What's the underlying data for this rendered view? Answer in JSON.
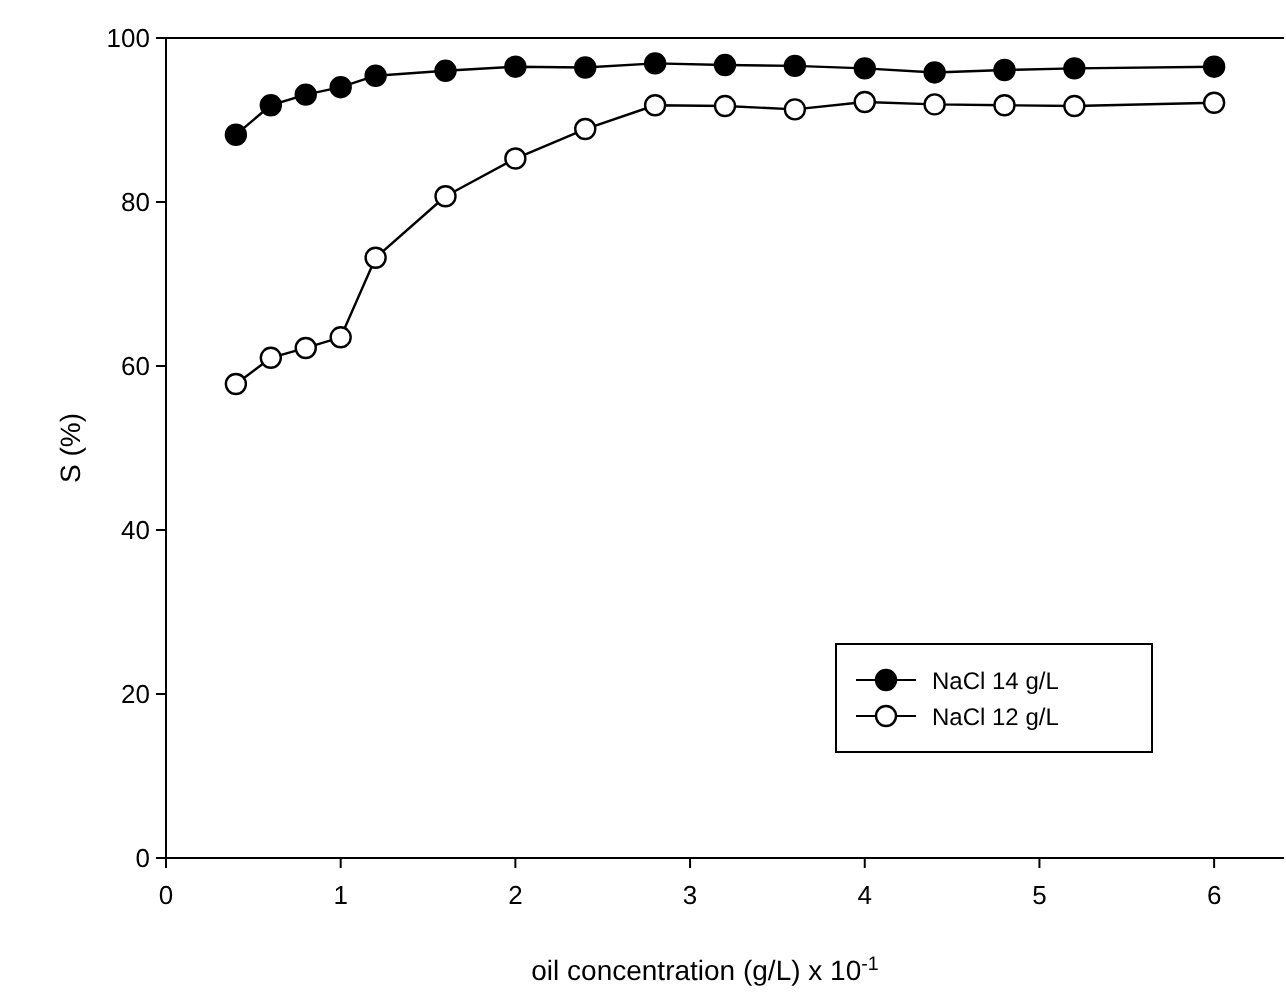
{
  "chart_data": {
    "type": "line",
    "xlabel": "oil concentration (g/L) x 10$^{-1}$",
    "ylabel": "S (%)",
    "x": [
      0.4,
      0.6,
      0.8,
      1.0,
      1.2,
      1.6,
      2.0,
      2.4,
      2.8,
      3.2,
      3.6,
      4.0,
      4.4,
      4.8,
      5.2,
      6.0
    ],
    "xlim": [
      0,
      6.4
    ],
    "xticks": [
      0,
      1,
      2,
      3,
      4,
      5,
      6
    ],
    "ylim": [
      0,
      100
    ],
    "yticks": [
      0,
      20,
      40,
      60,
      80,
      100
    ],
    "marker": "circle",
    "line_style": "solid",
    "legend": "bottom right",
    "grid": false,
    "series": [
      {
        "name": "NaCl 14 g/L",
        "color": "#000000",
        "values": [
          88.2,
          91.8,
          93.1,
          94,
          95.4,
          96,
          96.5,
          96.4,
          96.9,
          96.7,
          96.6,
          96.3,
          95.8,
          96.1,
          96.3,
          96.5
        ]
      },
      {
        "name": "NaCl 12 g/L",
        "color": "#000000",
        "values": [
          57.8,
          61,
          62.2,
          63.5,
          73.2,
          80.7,
          85.3,
          88.9,
          91.8,
          91.7,
          91.3,
          92.2,
          91.9,
          91.8,
          91.7,
          92.1
        ]
      }
    ]
  }
}
